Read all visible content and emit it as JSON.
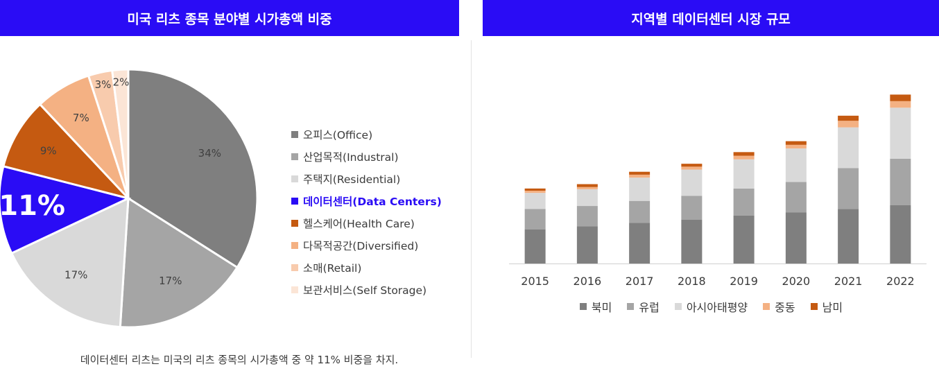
{
  "left_title": "미국 리츠 종목 분야별 시가총액 비중",
  "right_title": "지역별 데이터센터 시장 규모",
  "caption": "데이터센터 리츠는 미국의 리츠 종목의 시가총액 중 약 11% 비중을 차지.",
  "chart_data": [
    {
      "type": "pie",
      "title": "미국 리츠 종목 분야별 시가총액 비중",
      "slices": [
        {
          "label": "오피스(Office)",
          "value": 34,
          "display": "34%",
          "color": "#7f7f7f",
          "label_color": "#404040"
        },
        {
          "label": "산업목적(Industral)",
          "value": 17,
          "display": "17%",
          "color": "#a5a5a5",
          "label_color": "#404040"
        },
        {
          "label": "주택지(Residential)",
          "value": 17,
          "display": "17%",
          "color": "#d9d9d9",
          "label_color": "#404040"
        },
        {
          "label": "데이터센터(Data Centers)",
          "value": 11,
          "display": "11%",
          "color": "#2a0cf5",
          "label_color": "#ffffff",
          "highlight": true
        },
        {
          "label": "헬스케어(Health Care)",
          "value": 9,
          "display": "9%",
          "color": "#c55a11",
          "label_color": "#404040"
        },
        {
          "label": "다목적공간(Diversified)",
          "value": 7,
          "display": "7%",
          "color": "#f4b183",
          "label_color": "#404040"
        },
        {
          "label": "소매(Retail)",
          "value": 3,
          "display": "3%",
          "color": "#f8cbad",
          "label_color": "#404040"
        },
        {
          "label": "보관서비스(Self Storage)",
          "value": 2,
          "display": "2%",
          "color": "#fbe5d6",
          "label_color": "#404040"
        }
      ]
    },
    {
      "type": "bar",
      "stacked": true,
      "title": "지역별 데이터센터 시장 규모",
      "categories": [
        "2015",
        "2016",
        "2017",
        "2018",
        "2019",
        "2020",
        "2021",
        "2022"
      ],
      "ylim": [
        0,
        240
      ],
      "series": [
        {
          "name": "북미",
          "color": "#7f7f7f",
          "values": [
            47,
            51,
            56,
            60,
            66,
            70,
            75,
            80
          ]
        },
        {
          "name": "유럽",
          "color": "#a5a5a5",
          "values": [
            28,
            28,
            30,
            33,
            37,
            42,
            56,
            64
          ]
        },
        {
          "name": "아시아태평양",
          "color": "#d9d9d9",
          "values": [
            22,
            23,
            32,
            36,
            40,
            46,
            56,
            70
          ]
        },
        {
          "name": "중동",
          "color": "#f4b183",
          "values": [
            3,
            3,
            4,
            4,
            5,
            5,
            9,
            9
          ]
        },
        {
          "name": "남미",
          "color": "#c55a11",
          "values": [
            3,
            4,
            4,
            4,
            5,
            5,
            7,
            9
          ]
        }
      ]
    }
  ]
}
